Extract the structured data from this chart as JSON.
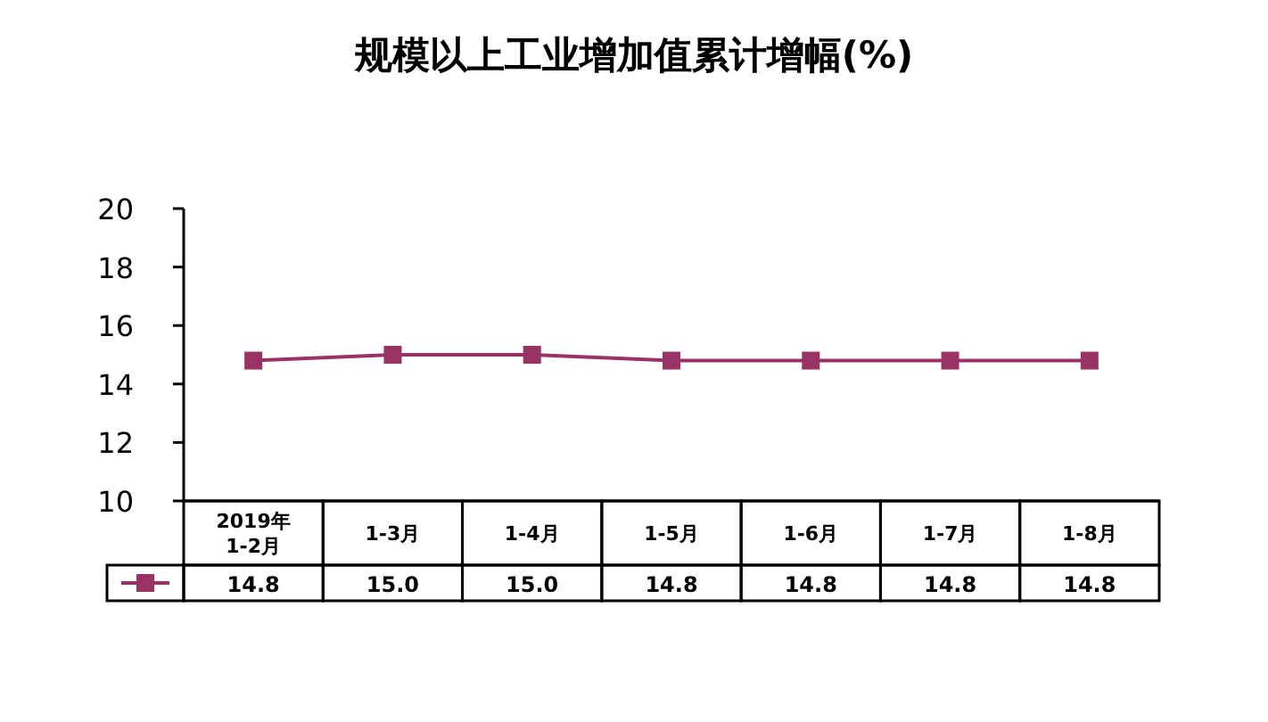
{
  "chart_data": {
    "type": "line",
    "title": "规模以上工业增加值累计增幅(%)",
    "categories": [
      "2019年\n1-2月",
      "1-3月",
      "1-4月",
      "1-5月",
      "1-6月",
      "1-7月",
      "1-8月"
    ],
    "series": [
      {
        "color": "#993366",
        "values": [
          14.8,
          15.0,
          15.0,
          14.8,
          14.8,
          14.8,
          14.8
        ],
        "value_labels": [
          "14.8",
          "15.0",
          "15.0",
          "14.8",
          "14.8",
          "14.8",
          "14.8"
        ]
      }
    ],
    "ylim": [
      10,
      20
    ],
    "yticks": [
      10,
      12,
      14,
      16,
      18,
      20
    ],
    "marker": "square",
    "line_style": "solid",
    "grid": false
  }
}
